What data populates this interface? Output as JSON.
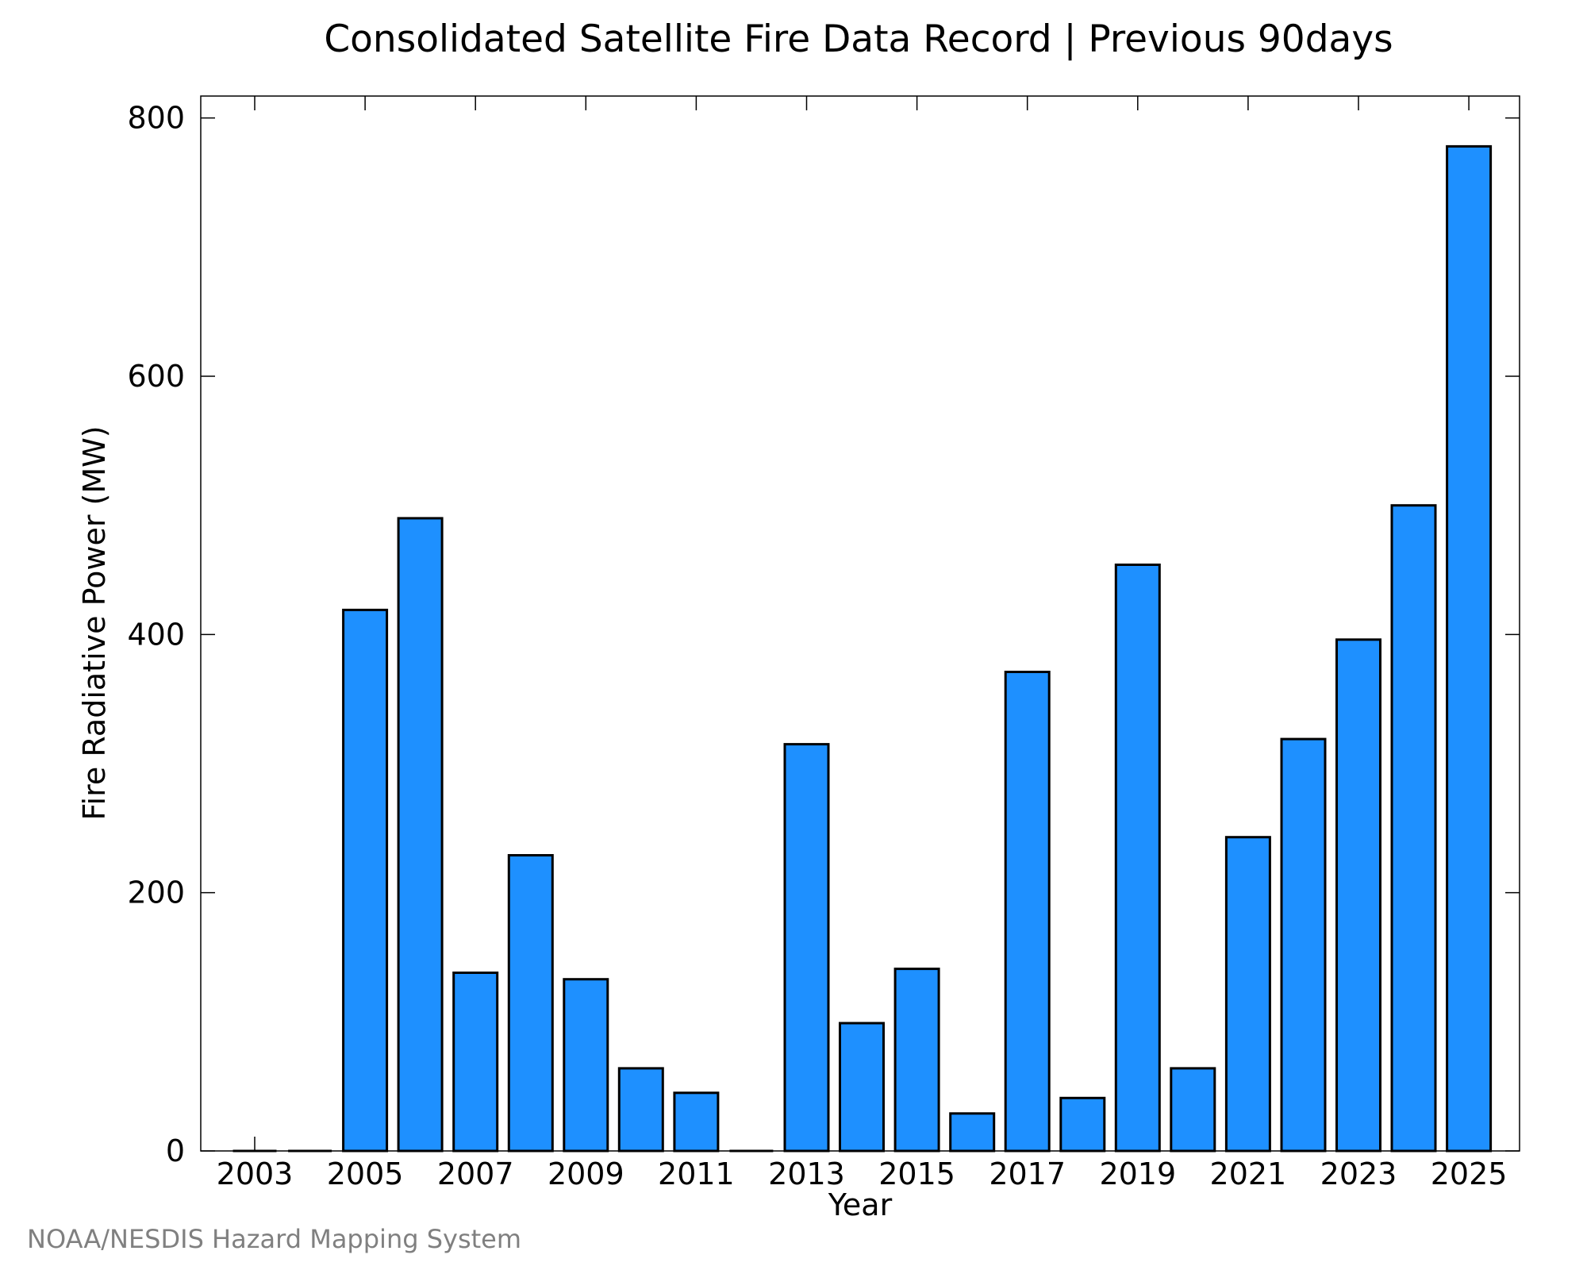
{
  "chart_data": {
    "type": "bar",
    "title": "Consolidated Satellite Fire Data Record | Previous 90days",
    "xlabel": "Year",
    "ylabel": "Fire Radiative Power (MW)",
    "categories": [
      "2003",
      "2004",
      "2005",
      "2006",
      "2007",
      "2008",
      "2009",
      "2010",
      "2011",
      "2012",
      "2013",
      "2014",
      "2015",
      "2016",
      "2017",
      "2018",
      "2019",
      "2020",
      "2021",
      "2022",
      "2023",
      "2024",
      "2025"
    ],
    "values": [
      0,
      0,
      419,
      490,
      138,
      229,
      133,
      64,
      45,
      0,
      315,
      99,
      141,
      29,
      371,
      41,
      454,
      64,
      243,
      319,
      396,
      500,
      778
    ],
    "x_tick_labels": [
      "2003",
      "2005",
      "2007",
      "2009",
      "2011",
      "2013",
      "2015",
      "2017",
      "2019",
      "2021",
      "2023",
      "2025"
    ],
    "y_tick_labels": [
      "0",
      "200",
      "400",
      "600",
      "800"
    ],
    "y_ticks": [
      0,
      200,
      400,
      600,
      800
    ],
    "ylim": [
      0,
      817
    ],
    "grid": false,
    "bar_color": "#1e90ff",
    "bar_edge_color": "#000000"
  },
  "credit": "NOAA/NESDIS Hazard Mapping System"
}
